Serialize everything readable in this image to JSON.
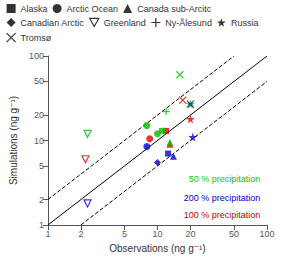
{
  "chart_data": {
    "type": "scatter",
    "xlabel": "Observations (ng g⁻¹)",
    "ylabel": "Simulations (ng g⁻¹)",
    "log": true,
    "xlim": [
      1,
      100
    ],
    "ylim": [
      1,
      100
    ],
    "xticks": [
      1,
      2,
      5,
      10,
      20,
      50,
      100
    ],
    "yticks": [
      1,
      2,
      5,
      10,
      20,
      50,
      100
    ],
    "grid": false,
    "legend": "upper left",
    "legend_entries": [
      {
        "name": "Alaska",
        "marker": "square",
        "color": "#000000"
      },
      {
        "name": "Arctic Ocean",
        "marker": "circle",
        "color": "#000000"
      },
      {
        "name": "Canada sub-Arcitc",
        "marker": "triangle-up",
        "color": "#000000"
      },
      {
        "name": "Canadian Arctic",
        "marker": "diamond",
        "color": "#000000"
      },
      {
        "name": "Greenland",
        "marker": "triangle-down",
        "color": "#000000"
      },
      {
        "name": "Ny-Ålesund",
        "marker": "plus",
        "color": "#000000"
      },
      {
        "name": "Russia",
        "marker": "star",
        "color": "#000000"
      },
      {
        "name": "Tromsø",
        "marker": "x",
        "color": "#000000"
      }
    ],
    "annotations": [
      {
        "text": "50 % precipitation",
        "color": "#00cc00"
      },
      {
        "text": "200 % precipitation",
        "color": "#0000cc"
      },
      {
        "text": "100 % precipitation",
        "color": "#cc0000"
      }
    ],
    "series": [
      {
        "type": "line",
        "color": "#000000",
        "line_style": "solid",
        "x": [
          1,
          100
        ],
        "values": [
          1,
          100
        ]
      },
      {
        "type": "line",
        "color": "#000000",
        "line_style": "dashed",
        "x": [
          1,
          50
        ],
        "values": [
          2,
          100
        ]
      },
      {
        "type": "line",
        "color": "#000000",
        "line_style": "dashed",
        "x": [
          2,
          100
        ],
        "values": [
          1,
          50
        ]
      },
      {
        "type": "scatter",
        "color": "#dd0000",
        "x": [
          12,
          8.5,
          13,
          2.2,
          20,
          17
        ],
        "values": [
          13,
          10.5,
          9,
          6,
          18,
          30
        ],
        "marker": [
          "square",
          "circle",
          "triangle-up",
          "triangle-down",
          "star",
          "x"
        ]
      },
      {
        "type": "scatter",
        "color": "#00bb00",
        "x": [
          11,
          8,
          10,
          13,
          12,
          2.3,
          20,
          16
        ],
        "values": [
          13,
          15,
          12,
          9.5,
          22,
          12,
          27,
          60
        ],
        "marker": [
          "square",
          "circle",
          "circle",
          "triangle-up",
          "plus",
          "triangle-down",
          "star",
          "x"
        ]
      },
      {
        "type": "scatter",
        "color": "#0000cc",
        "x": [
          12.5,
          8,
          14,
          10,
          2.3,
          21,
          20
        ],
        "values": [
          7,
          8.5,
          6.5,
          5.5,
          1.8,
          11,
          27
        ],
        "marker": [
          "square",
          "circle",
          "triangle-up",
          "diamond",
          "triangle-down",
          "star",
          "x"
        ]
      }
    ]
  }
}
